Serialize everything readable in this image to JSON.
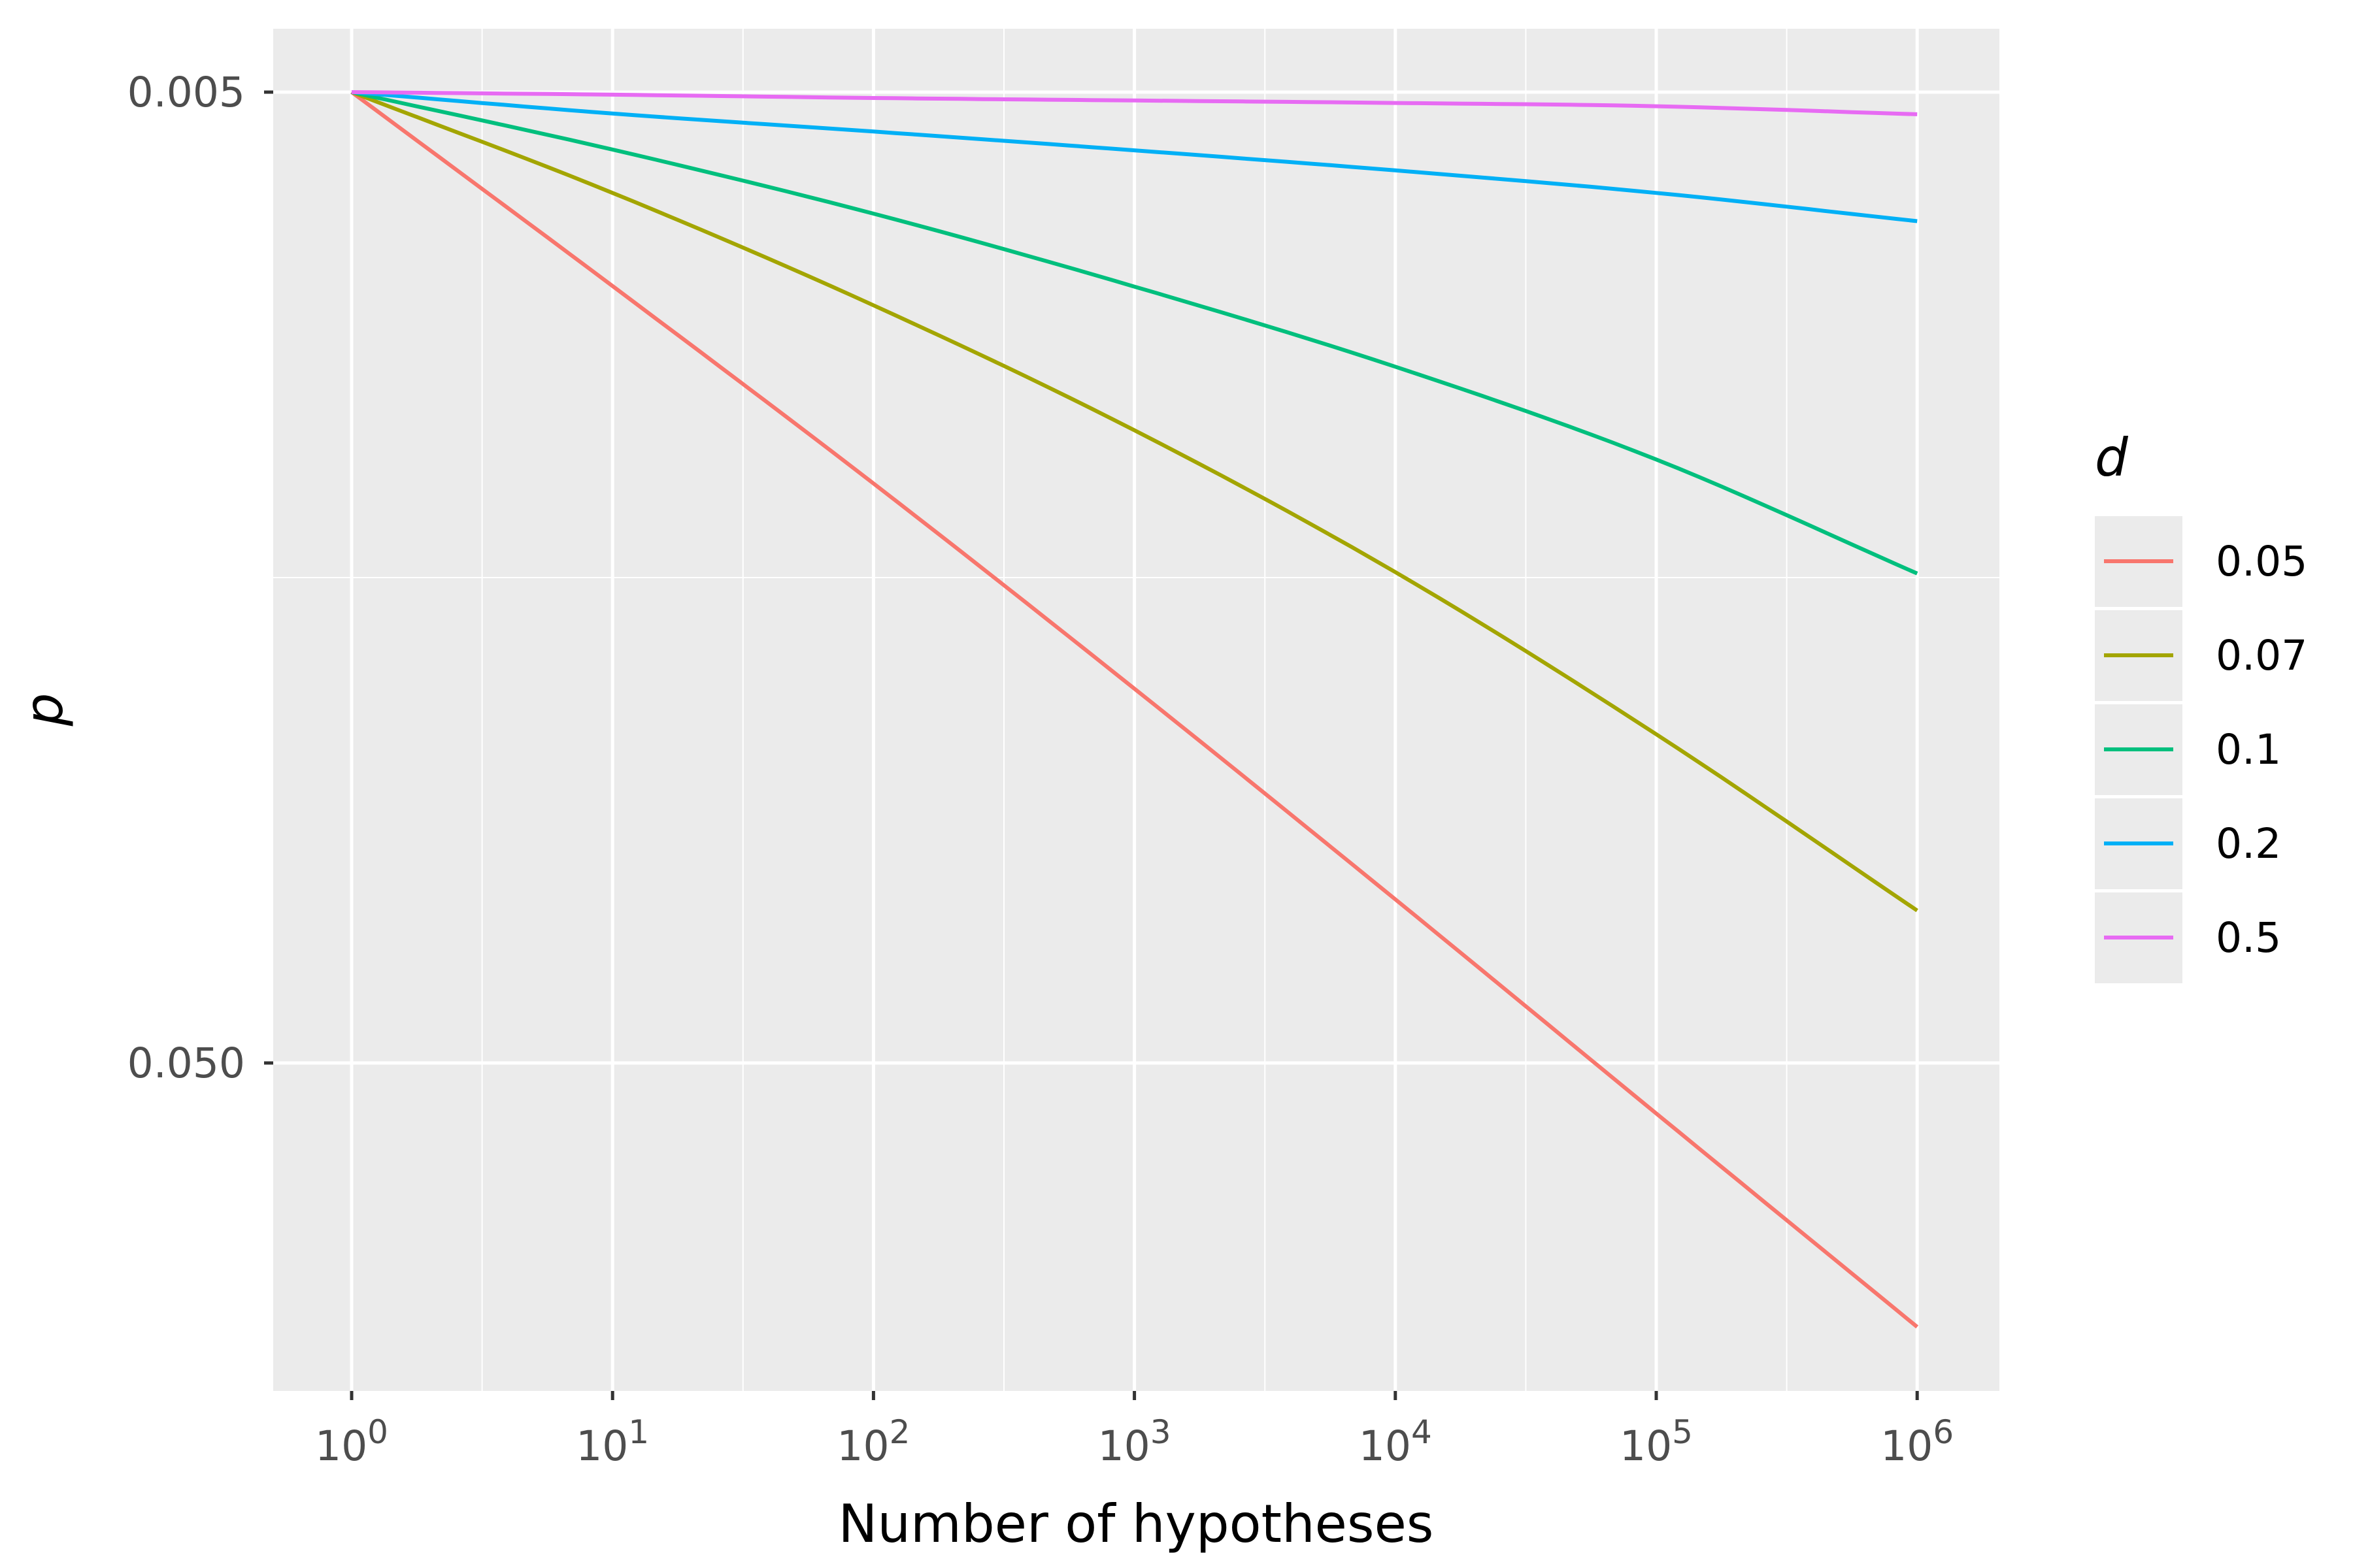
{
  "chart_data": {
    "type": "line",
    "xlabel": "Number of hypotheses",
    "ylabel": "p",
    "x_scale": "log10",
    "y_scale": "log10, reversed",
    "xlim": [
      0.5,
      1600000
    ],
    "ylim": [
      0.0047,
      0.158
    ],
    "x_ticks": [
      {
        "value": 1,
        "base": "10",
        "exp": "0"
      },
      {
        "value": 10,
        "base": "10",
        "exp": "1"
      },
      {
        "value": 100,
        "base": "10",
        "exp": "2"
      },
      {
        "value": 1000,
        "base": "10",
        "exp": "3"
      },
      {
        "value": 10000,
        "base": "10",
        "exp": "4"
      },
      {
        "value": 100000,
        "base": "10",
        "exp": "5"
      },
      {
        "value": 1000000,
        "base": "10",
        "exp": "6"
      }
    ],
    "y_ticks": [
      {
        "value": 0.005,
        "label": "0.005"
      },
      {
        "value": 0.05,
        "label": "0.050"
      }
    ],
    "grid": true,
    "legend": {
      "title": "d",
      "position": "right"
    },
    "x": [
      1,
      10,
      100,
      1000,
      10000,
      100000,
      1000000
    ],
    "series": [
      {
        "name": "0.05",
        "color": "#F8766D",
        "values": [
          0.005,
          0.00792,
          0.01265,
          0.02058,
          0.03392,
          0.05636,
          0.0935
        ]
      },
      {
        "name": "0.07",
        "color": "#A3A500",
        "values": [
          0.005,
          0.00635,
          0.00829,
          0.01115,
          0.01561,
          0.02293,
          0.03483
        ]
      },
      {
        "name": "0.1",
        "color": "#00BF7D",
        "values": [
          0.005,
          0.00573,
          0.00667,
          0.00793,
          0.00959,
          0.01195,
          0.01566
        ]
      },
      {
        "name": "0.2",
        "color": "#00B0F6",
        "values": [
          0.005,
          0.00526,
          0.00549,
          0.00574,
          0.00602,
          0.00635,
          0.00679
        ]
      },
      {
        "name": "0.5",
        "color": "#E76BF3",
        "values": [
          0.005,
          0.00503,
          0.00507,
          0.0051,
          0.00513,
          0.00517,
          0.00527
        ]
      }
    ]
  }
}
